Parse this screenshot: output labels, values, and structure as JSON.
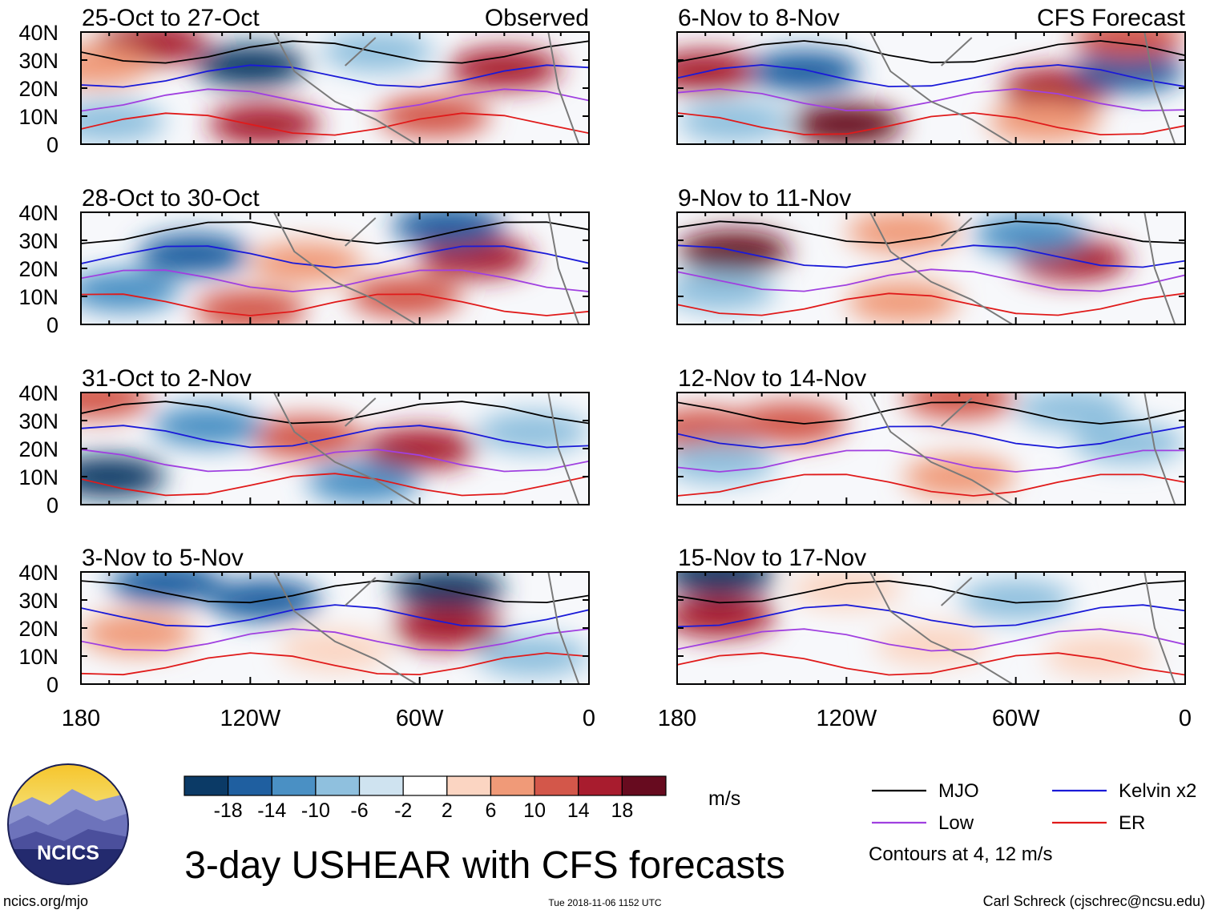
{
  "figure": {
    "title": "3-day USHEAR with CFS forecasts",
    "units": "m/s",
    "source_url": "ncics.org/mjo",
    "timestamp": "Tue 2018-11-06 1152 UTC",
    "author": "Carl Schreck (cjschrec@ncsu.edu)",
    "logo_text": "NCICS",
    "contours_note": "Contours at 4, 12 m/s"
  },
  "panels": {
    "left": [
      {
        "title": "25-Oct to 27-Oct",
        "tag": "Observed"
      },
      {
        "title": "28-Oct to 30-Oct",
        "tag": ""
      },
      {
        "title": "31-Oct to 2-Nov",
        "tag": ""
      },
      {
        "title": "3-Nov to 5-Nov",
        "tag": ""
      }
    ],
    "right": [
      {
        "title": "6-Nov to 8-Nov",
        "tag": "CFS Forecast"
      },
      {
        "title": "9-Nov to 11-Nov",
        "tag": ""
      },
      {
        "title": "12-Nov to 14-Nov",
        "tag": ""
      },
      {
        "title": "15-Nov to 17-Nov",
        "tag": ""
      }
    ]
  },
  "axes": {
    "lat_ticks": [
      "40N",
      "30N",
      "20N",
      "10N",
      "0"
    ],
    "lon_ticks": [
      "180",
      "120W",
      "60W",
      "0"
    ]
  },
  "colorbar": {
    "labels": [
      "-18",
      "-14",
      "-10",
      "-6",
      "-2",
      "2",
      "6",
      "10",
      "14",
      "18"
    ],
    "colors": [
      "#0b3a66",
      "#1f5fa0",
      "#4a90c4",
      "#8fc0de",
      "#cfe3f0",
      "#ffffff",
      "#fbd5c2",
      "#f09a78",
      "#d3574a",
      "#a81c2e",
      "#670b1f"
    ]
  },
  "legend": [
    {
      "label": "MJO",
      "color": "#000000"
    },
    {
      "label": "Kelvin x2",
      "color": "#1a1ad8"
    },
    {
      "label": "Low",
      "color": "#a040e0"
    },
    {
      "label": "ER",
      "color": "#e01a1a"
    }
  ],
  "chart_data": {
    "type": "heatmap",
    "variable": "3-day USHEAR",
    "units": "m/s",
    "lat_range": [
      0,
      40
    ],
    "lon_range": [
      -180,
      0
    ],
    "color_levels": [
      -18,
      -14,
      -10,
      -6,
      -2,
      2,
      6,
      10,
      14,
      18
    ],
    "blobs": [
      [
        {
          "lon": -155,
          "lat": 36,
          "value": 16
        },
        {
          "lon": -120,
          "lat": 28,
          "value": -20
        },
        {
          "lon": -115,
          "lat": 7,
          "value": 16
        },
        {
          "lon": -55,
          "lat": 10,
          "value": 14
        },
        {
          "lon": -30,
          "lat": 27,
          "value": 16
        },
        {
          "lon": -170,
          "lat": 8,
          "value": -8
        },
        {
          "lon": -75,
          "lat": 33,
          "value": -8
        },
        {
          "lon": -175,
          "lat": 28,
          "value": 10
        }
      ],
      [
        {
          "lon": -140,
          "lat": 25,
          "value": -14
        },
        {
          "lon": -40,
          "lat": 24,
          "value": 18
        },
        {
          "lon": -65,
          "lat": 10,
          "value": 12
        },
        {
          "lon": -120,
          "lat": 5,
          "value": 12
        },
        {
          "lon": -50,
          "lat": 35,
          "value": -14
        },
        {
          "lon": -165,
          "lat": 12,
          "value": -10
        },
        {
          "lon": -100,
          "lat": 22,
          "value": 8
        }
      ],
      [
        {
          "lon": -170,
          "lat": 10,
          "value": -18
        },
        {
          "lon": -60,
          "lat": 20,
          "value": 16
        },
        {
          "lon": -100,
          "lat": 24,
          "value": 14
        },
        {
          "lon": -135,
          "lat": 28,
          "value": -12
        },
        {
          "lon": -175,
          "lat": 38,
          "value": 12
        },
        {
          "lon": -20,
          "lat": 26,
          "value": -8
        },
        {
          "lon": -80,
          "lat": 8,
          "value": -10
        }
      ],
      [
        {
          "lon": -50,
          "lat": 34,
          "value": -20
        },
        {
          "lon": -50,
          "lat": 20,
          "value": 18
        },
        {
          "lon": -115,
          "lat": 30,
          "value": -14
        },
        {
          "lon": -150,
          "lat": 36,
          "value": -14
        },
        {
          "lon": -160,
          "lat": 18,
          "value": 8
        },
        {
          "lon": -90,
          "lat": 12,
          "value": 6
        },
        {
          "lon": -20,
          "lat": 10,
          "value": -6
        }
      ],
      [
        {
          "lon": -170,
          "lat": 26,
          "value": 18
        },
        {
          "lon": -120,
          "lat": 7,
          "value": 20
        },
        {
          "lon": -45,
          "lat": 20,
          "value": 18
        },
        {
          "lon": -135,
          "lat": 26,
          "value": -16
        },
        {
          "lon": -20,
          "lat": 26,
          "value": -16
        },
        {
          "lon": -50,
          "lat": 8,
          "value": 8
        },
        {
          "lon": -160,
          "lat": 8,
          "value": -8
        },
        {
          "lon": -20,
          "lat": 38,
          "value": 14
        }
      ],
      [
        {
          "lon": -160,
          "lat": 26,
          "value": 20
        },
        {
          "lon": -40,
          "lat": 23,
          "value": 16
        },
        {
          "lon": -100,
          "lat": 33,
          "value": 10
        },
        {
          "lon": -55,
          "lat": 32,
          "value": -12
        },
        {
          "lon": -165,
          "lat": 12,
          "value": -8
        },
        {
          "lon": -100,
          "lat": 8,
          "value": 8
        }
      ],
      [
        {
          "lon": -170,
          "lat": 27,
          "value": 14
        },
        {
          "lon": -140,
          "lat": 29,
          "value": 12
        },
        {
          "lon": -80,
          "lat": 38,
          "value": 14
        },
        {
          "lon": -80,
          "lat": 10,
          "value": 8
        },
        {
          "lon": -40,
          "lat": 34,
          "value": -8
        },
        {
          "lon": -165,
          "lat": 15,
          "value": -6
        },
        {
          "lon": -20,
          "lat": 22,
          "value": -6
        }
      ],
      [
        {
          "lon": -165,
          "lat": 24,
          "value": 18
        },
        {
          "lon": -165,
          "lat": 39,
          "value": -18
        },
        {
          "lon": -60,
          "lat": 30,
          "value": -8
        },
        {
          "lon": -90,
          "lat": 14,
          "value": 6
        },
        {
          "lon": -120,
          "lat": 34,
          "value": 6
        },
        {
          "lon": -30,
          "lat": 10,
          "value": 4
        }
      ]
    ]
  }
}
